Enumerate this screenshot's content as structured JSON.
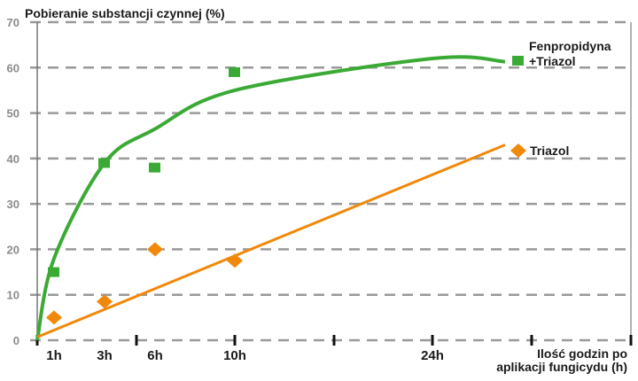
{
  "chart_data": {
    "type": "scatter",
    "title": "Pobieranie substancji czynnej (%)",
    "xlabel_line1": "Ilość godzin po",
    "xlabel_line2": "aplikacji fungicydu (h)",
    "ylabel": "",
    "ylim": [
      0,
      70
    ],
    "yticks": [
      0,
      10,
      20,
      30,
      40,
      50,
      60,
      70
    ],
    "xtick_labels": [
      "1h",
      "3h",
      "6h",
      "10h",
      "24h"
    ],
    "x_hours": [
      1,
      3,
      6,
      10
    ],
    "grid": "horizontal dashed",
    "legend_placement": "right, at series ends",
    "series": [
      {
        "name_line1": "Fenpropidyna",
        "name_line2": "+Triazol",
        "marker": "square",
        "color": "#3aaa35",
        "values": [
          15,
          39,
          38,
          59
        ],
        "trend": [
          [
            0,
            0
          ],
          [
            1,
            18
          ],
          [
            3,
            39
          ],
          [
            6,
            46.5
          ],
          [
            10,
            55
          ],
          [
            24,
            62
          ],
          [
            30,
            61.3
          ]
        ]
      },
      {
        "name_line1": "Triazol",
        "marker": "diamond",
        "color": "#f0880a",
        "values": [
          5,
          8.5,
          20,
          17.5
        ],
        "trend": [
          [
            0,
            0.7
          ],
          [
            30,
            43
          ]
        ]
      }
    ]
  }
}
